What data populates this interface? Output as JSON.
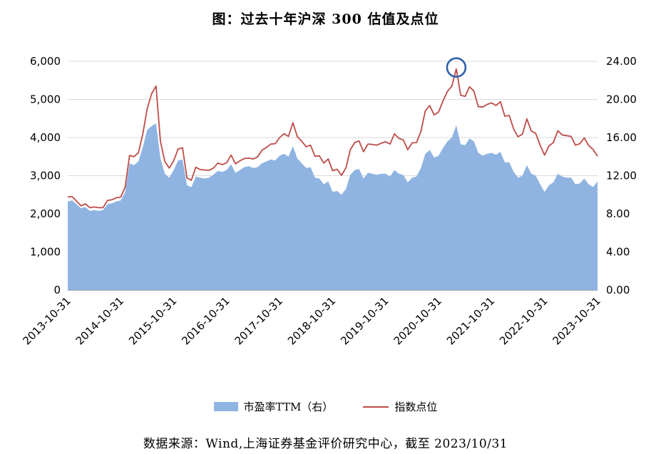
{
  "page": {
    "title": "图：过去十年沪深 300 估值及点位",
    "source_note": "数据来源：Wind,上海证券基金评价研究中心，截至 2023/10/31"
  },
  "chart_data": {
    "type": "area+line combo",
    "title": "图：过去十年沪深 300 估值及点位",
    "x_monthly_range": [
      "2013-10-31",
      "2023-10-31"
    ],
    "grid": true,
    "legend_position": "bottom",
    "colors": {
      "area": "#8FB4E2",
      "line": "#BE4B48",
      "annotation": "#2F5FA8",
      "grid": "#D9D9D9",
      "axis": "#7F7F7F"
    },
    "x_ticks": [
      {
        "index": 0,
        "label": "2013-10-31"
      },
      {
        "index": 12,
        "label": "2014-10-31"
      },
      {
        "index": 24,
        "label": "2015-10-31"
      },
      {
        "index": 36,
        "label": "2016-10-31"
      },
      {
        "index": 48,
        "label": "2017-10-31"
      },
      {
        "index": 60,
        "label": "2018-10-31"
      },
      {
        "index": 72,
        "label": "2019-10-31"
      },
      {
        "index": 84,
        "label": "2020-10-31"
      },
      {
        "index": 96,
        "label": "2021-10-31"
      },
      {
        "index": 108,
        "label": "2022-10-31"
      },
      {
        "index": 120,
        "label": "2023-10-31"
      }
    ],
    "left_axis": {
      "label": "指数点位",
      "min": 0,
      "max": 6000,
      "ticks": [
        {
          "value": 0,
          "label": "0"
        },
        {
          "value": 1000,
          "label": "1,000"
        },
        {
          "value": 2000,
          "label": "2,000"
        },
        {
          "value": 3000,
          "label": "3,000"
        },
        {
          "value": 4000,
          "label": "4,000"
        },
        {
          "value": 5000,
          "label": "5,000"
        },
        {
          "value": 6000,
          "label": "6,000"
        }
      ]
    },
    "right_axis": {
      "label": "市盈率TTM",
      "min": 0,
      "max": 24,
      "ticks": [
        {
          "value": 0,
          "label": "0.00"
        },
        {
          "value": 4,
          "label": "4.00"
        },
        {
          "value": 8,
          "label": "8.00"
        },
        {
          "value": 12,
          "label": "12.00"
        },
        {
          "value": 16,
          "label": "16.00"
        },
        {
          "value": 20,
          "label": "20.00"
        },
        {
          "value": 24,
          "label": "24.00"
        }
      ]
    },
    "series": [
      {
        "name": "市盈率TTM（右）",
        "type": "area",
        "axis": "right",
        "color": "#8FB4E2",
        "values": [
          9.3,
          9.4,
          9.0,
          8.6,
          8.7,
          8.3,
          8.4,
          8.3,
          8.4,
          9.0,
          9.1,
          9.3,
          9.4,
          10.3,
          13.3,
          13.1,
          13.5,
          15.0,
          16.8,
          17.2,
          17.5,
          13.8,
          12.2,
          11.8,
          12.6,
          13.6,
          13.7,
          11.0,
          10.8,
          11.9,
          11.8,
          11.7,
          11.8,
          12.1,
          12.5,
          12.4,
          12.6,
          13.2,
          12.3,
          12.6,
          12.9,
          13.0,
          12.8,
          12.9,
          13.3,
          13.5,
          13.7,
          13.6,
          14.1,
          14.3,
          14.0,
          15.1,
          13.8,
          13.3,
          12.8,
          12.9,
          11.8,
          11.7,
          11.1,
          11.4,
          10.3,
          10.4,
          10.0,
          10.6,
          12.1,
          12.6,
          12.7,
          11.7,
          12.3,
          12.2,
          12.1,
          12.2,
          12.2,
          11.9,
          12.6,
          12.2,
          12.1,
          11.3,
          11.8,
          11.9,
          12.8,
          14.3,
          14.7,
          13.9,
          14.1,
          14.9,
          15.6,
          16.0,
          17.3,
          15.3,
          15.2,
          15.9,
          15.6,
          14.4,
          14.1,
          14.3,
          14.4,
          14.2,
          14.5,
          13.4,
          13.4,
          12.4,
          11.8,
          12.0,
          13.1,
          12.2,
          12.0,
          11.1,
          10.3,
          11.0,
          11.3,
          12.2,
          11.9,
          11.8,
          11.8,
          11.1,
          11.2,
          11.7,
          11.1,
          10.8,
          11.4
        ]
      },
      {
        "name": "指数点位",
        "type": "line",
        "axis": "left",
        "color": "#BE4B48",
        "values": [
          2440,
          2450,
          2330,
          2210,
          2260,
          2160,
          2180,
          2160,
          2160,
          2350,
          2370,
          2420,
          2440,
          2700,
          3530,
          3500,
          3600,
          4100,
          4750,
          5150,
          5350,
          3900,
          3370,
          3200,
          3390,
          3700,
          3730,
          2940,
          2880,
          3220,
          3160,
          3150,
          3140,
          3200,
          3330,
          3290,
          3340,
          3540,
          3310,
          3390,
          3450,
          3460,
          3440,
          3490,
          3670,
          3740,
          3830,
          3840,
          4000,
          4100,
          4030,
          4390,
          4020,
          3900,
          3760,
          3800,
          3510,
          3520,
          3330,
          3440,
          3130,
          3170,
          3010,
          3200,
          3680,
          3870,
          3910,
          3630,
          3830,
          3820,
          3800,
          3850,
          3890,
          3830,
          4100,
          3980,
          3940,
          3680,
          3860,
          3870,
          4160,
          4700,
          4840,
          4590,
          4670,
          4960,
          5210,
          5350,
          5800,
          5110,
          5080,
          5330,
          5220,
          4810,
          4800,
          4870,
          4910,
          4840,
          4940,
          4560,
          4580,
          4220,
          4020,
          4090,
          4490,
          4170,
          4110,
          3800,
          3540,
          3780,
          3870,
          4180,
          4070,
          4050,
          4030,
          3800,
          3840,
          3990,
          3790,
          3690,
          3510
        ]
      }
    ],
    "annotation": {
      "type": "circle",
      "series": "指数点位",
      "index": 88,
      "note": "circle around 2021-02 index peak",
      "color": "#2F5FA8"
    }
  }
}
